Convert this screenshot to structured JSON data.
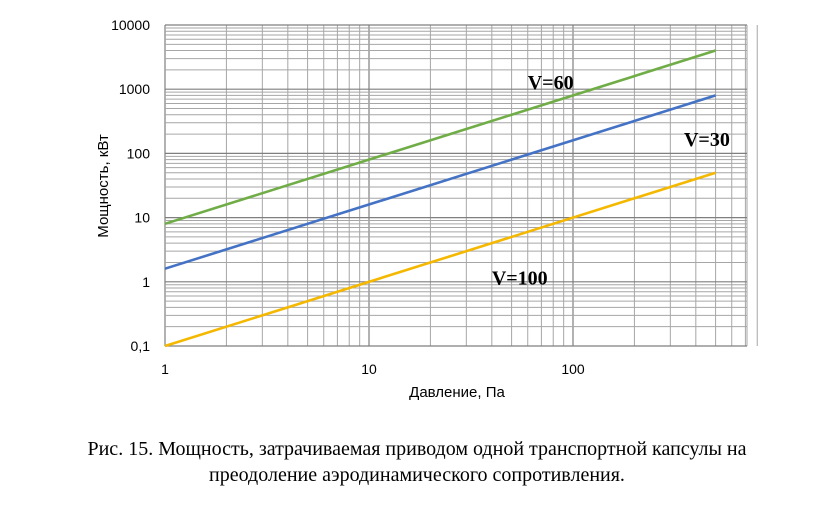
{
  "chart_data": {
    "type": "line",
    "xscale": "log",
    "yscale": "log",
    "xlim": [
      1,
      800
    ],
    "ylim": [
      0.1,
      10000
    ],
    "xlabel": "Давление, Па",
    "ylabel": "Мощность, кВт",
    "x_tick_labels": [
      "1",
      "10",
      "100"
    ],
    "y_tick_labels": [
      "0,1",
      "1",
      "10",
      "100",
      "1000",
      "10000"
    ],
    "grid": true,
    "series": [
      {
        "name": "V=60",
        "color": "#70ad47",
        "x": [
          1,
          500
        ],
        "y": [
          8,
          4000
        ],
        "label_at": [
          60,
          1000
        ]
      },
      {
        "name": "V=30",
        "color": "#4472c4",
        "x": [
          1,
          500
        ],
        "y": [
          1.6,
          800
        ],
        "label_at": [
          350,
          130
        ]
      },
      {
        "name": "V=100",
        "color": "#f5b800",
        "x": [
          1,
          500
        ],
        "y": [
          0.1,
          50
        ],
        "label_at": [
          40,
          0.9
        ]
      }
    ]
  },
  "caption": {
    "line1": "Рис. 15. Мощность, затрачиваемая приводом одной транспортной капсулы на",
    "line2": "преодоление аэродинамического сопротивления."
  }
}
